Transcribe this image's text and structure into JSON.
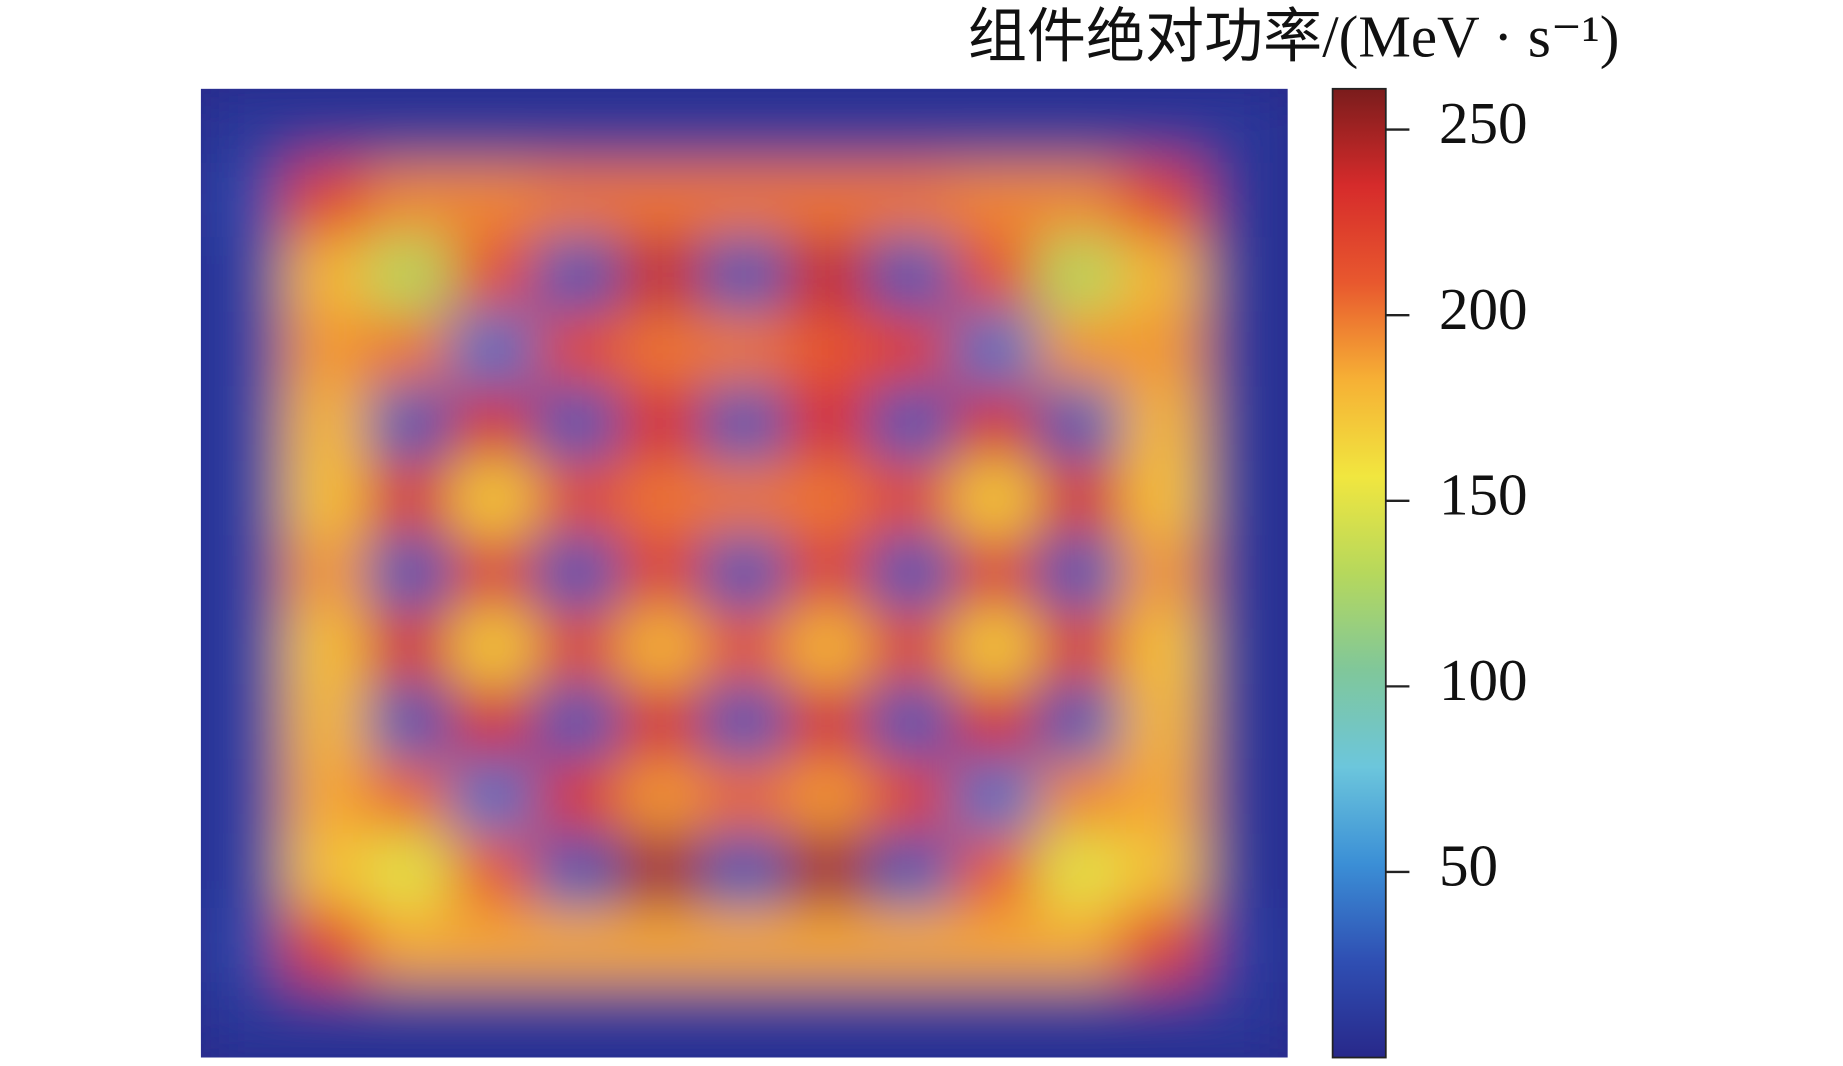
{
  "chart_data": {
    "type": "heatmap",
    "colorbar_title": "组件绝对功率/(MeV · s⁻¹)",
    "z": [
      [
        10,
        10,
        10,
        10,
        10,
        10,
        10,
        10,
        10,
        10,
        10,
        10,
        10
      ],
      [
        20,
        220,
        195,
        195,
        200,
        200,
        200,
        200,
        200,
        195,
        195,
        220,
        10
      ],
      [
        15,
        180,
        130,
        215,
        30,
        240,
        30,
        240,
        30,
        215,
        130,
        180,
        10
      ],
      [
        15,
        190,
        200,
        40,
        220,
        200,
        200,
        210,
        225,
        40,
        190,
        190,
        10
      ],
      [
        15,
        180,
        30,
        235,
        30,
        235,
        30,
        235,
        30,
        235,
        30,
        180,
        10
      ],
      [
        15,
        175,
        230,
        170,
        220,
        200,
        200,
        200,
        220,
        170,
        235,
        175,
        10
      ],
      [
        15,
        190,
        30,
        225,
        30,
        225,
        30,
        225,
        30,
        225,
        30,
        190,
        10
      ],
      [
        15,
        175,
        235,
        170,
        225,
        180,
        215,
        180,
        225,
        170,
        230,
        175,
        10
      ],
      [
        15,
        180,
        30,
        235,
        30,
        235,
        30,
        235,
        30,
        235,
        30,
        180,
        10
      ],
      [
        15,
        185,
        205,
        40,
        230,
        190,
        205,
        190,
        225,
        40,
        195,
        185,
        10
      ],
      [
        15,
        175,
        150,
        210,
        30,
        250,
        30,
        250,
        30,
        210,
        150,
        175,
        10
      ],
      [
        20,
        220,
        185,
        185,
        185,
        185,
        185,
        185,
        185,
        185,
        185,
        220,
        15
      ],
      [
        10,
        10,
        10,
        10,
        10,
        10,
        10,
        10,
        10,
        10,
        10,
        10,
        10
      ]
    ],
    "clim": [
      0,
      261
    ],
    "colorbar_ticks": [
      50,
      100,
      150,
      200,
      250
    ],
    "colormap": [
      "#28288a",
      "#2f4fb3",
      "#3b8fd6",
      "#6cc6dc",
      "#80c79a",
      "#b6d85c",
      "#f1e63f",
      "#f6b035",
      "#e8582e",
      "#d62b2b",
      "#7a1c1c"
    ]
  }
}
